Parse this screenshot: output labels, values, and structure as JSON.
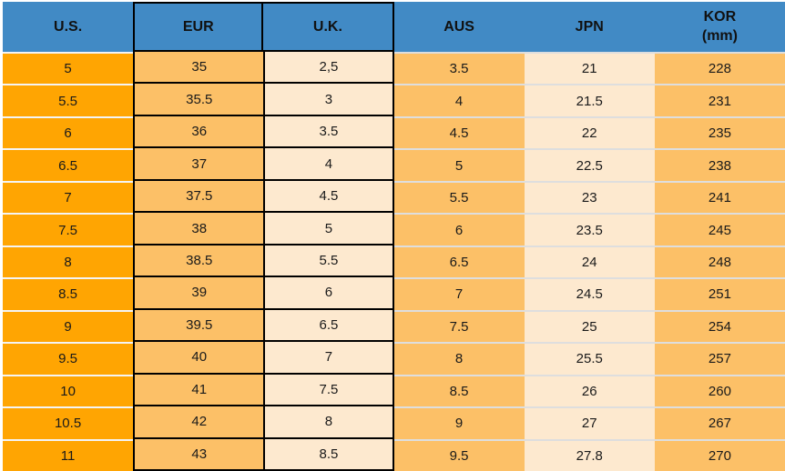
{
  "colors": {
    "header_bg": "#418AC5",
    "header_text": "#111111",
    "us_bg": "#FFA502",
    "orange_bg": "#FCC067",
    "peach_bg": "#FDE9CF",
    "grid_black": "#000000",
    "sep_white": "#F4F4F4",
    "sep_light": "#DEDEDE",
    "cell_text": "#1A1A1A"
  },
  "chart_data": {
    "type": "table",
    "columns": [
      {
        "label": "U.S."
      },
      {
        "label": "EUR"
      },
      {
        "label": "U.K."
      },
      {
        "label": "AUS"
      },
      {
        "label": "JPN"
      },
      {
        "label": "KOR",
        "sublabel": "(mm)"
      }
    ],
    "rows": [
      [
        "5",
        "35",
        "2,5",
        "3.5",
        "21",
        "228"
      ],
      [
        "5.5",
        "35.5",
        "3",
        "4",
        "21.5",
        "231"
      ],
      [
        "6",
        "36",
        "3.5",
        "4.5",
        "22",
        "235"
      ],
      [
        "6.5",
        "37",
        "4",
        "5",
        "22.5",
        "238"
      ],
      [
        "7",
        "37.5",
        "4.5",
        "5.5",
        "23",
        "241"
      ],
      [
        "7.5",
        "38",
        "5",
        "6",
        "23.5",
        "245"
      ],
      [
        "8",
        "38.5",
        "5.5",
        "6.5",
        "24",
        "248"
      ],
      [
        "8.5",
        "39",
        "6",
        "7",
        "24.5",
        "251"
      ],
      [
        "9",
        "39.5",
        "6.5",
        "7.5",
        "25",
        "254"
      ],
      [
        "9.5",
        "40",
        "7",
        "8",
        "25.5",
        "257"
      ],
      [
        "10",
        "41",
        "7.5",
        "8.5",
        "26",
        "260"
      ],
      [
        "10.5",
        "42",
        "8",
        "9",
        "27",
        "267"
      ],
      [
        "11",
        "43",
        "8.5",
        "9.5",
        "27.8",
        "270"
      ]
    ]
  }
}
